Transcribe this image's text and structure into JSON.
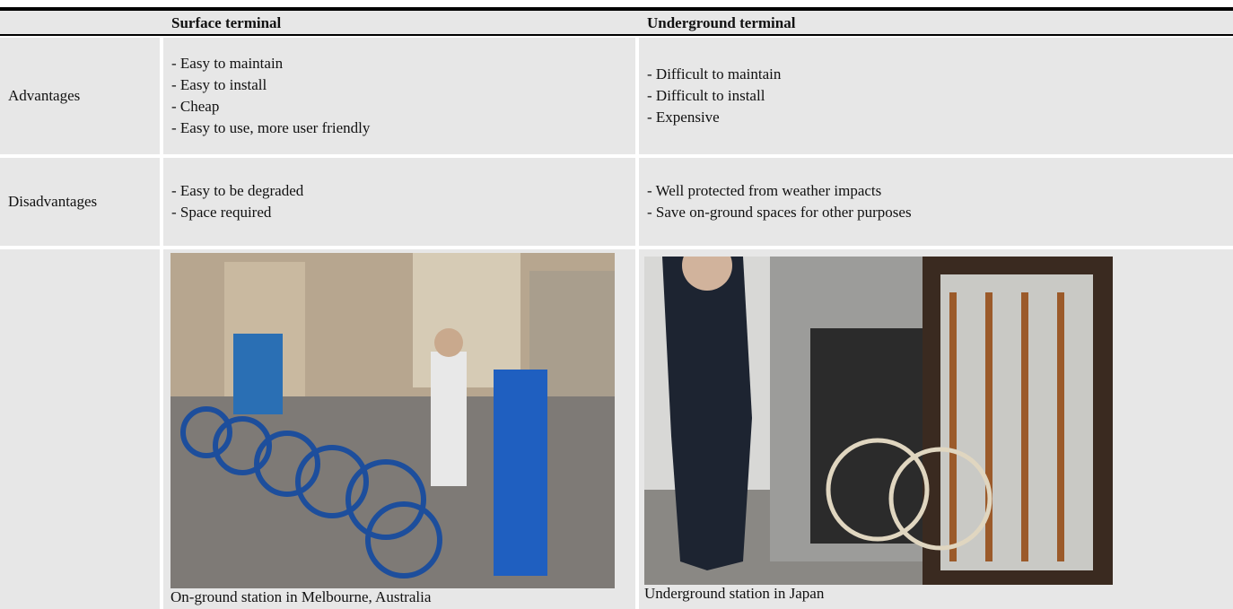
{
  "header": {
    "surface": "Surface terminal",
    "underground": "Underground terminal"
  },
  "rows": [
    {
      "label": "Advantages",
      "surface": [
        "- Easy to maintain",
        "- Easy to install",
        "- Cheap",
        "- Easy to use, more user friendly"
      ],
      "underground": [
        "- Difficult to maintain",
        "- Difficult to install",
        "- Expensive"
      ]
    },
    {
      "label": "Disadvantages",
      "surface": [
        "- Easy to be degraded",
        "- Space required"
      ],
      "underground": [
        "- Well protected from weather impacts",
        "- Save on-ground spaces for other purposes"
      ]
    }
  ],
  "images": {
    "surface_caption": "On-ground station in Melbourne, Australia",
    "underground_caption": "Underground station in Japan"
  }
}
